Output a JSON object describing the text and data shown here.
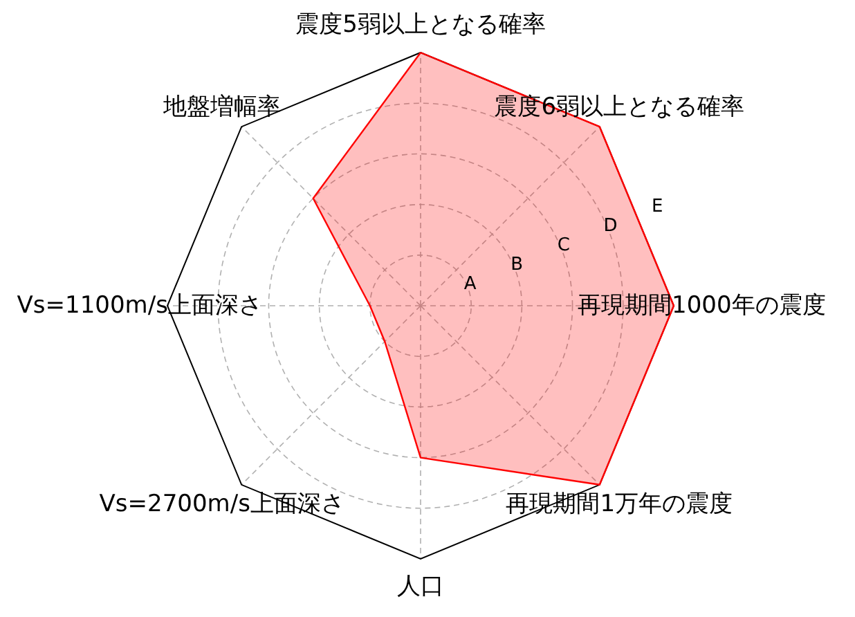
{
  "chart_data": {
    "type": "radar",
    "categories": [
      "震度5弱以上となる確率",
      "震度6弱以上となる確率",
      "再現期間1000年の震度",
      "再現期間1万年の震度",
      "人口",
      "Vs=2700m/s上面深さ",
      "Vs=1100m/s上面深さ",
      "地盤増幅率"
    ],
    "series": [
      {
        "color": "#ff0000",
        "values": [
          5,
          5,
          5,
          5,
          3,
          1,
          1,
          3
        ]
      }
    ],
    "ylim": [
      0,
      5
    ],
    "yticks": [
      {
        "value": 1,
        "label": "A"
      },
      {
        "value": 2,
        "label": "B"
      },
      {
        "value": 3,
        "label": "C"
      },
      {
        "value": 4,
        "label": "D"
      },
      {
        "value": 5,
        "label": "E"
      }
    ],
    "grid": true
  }
}
